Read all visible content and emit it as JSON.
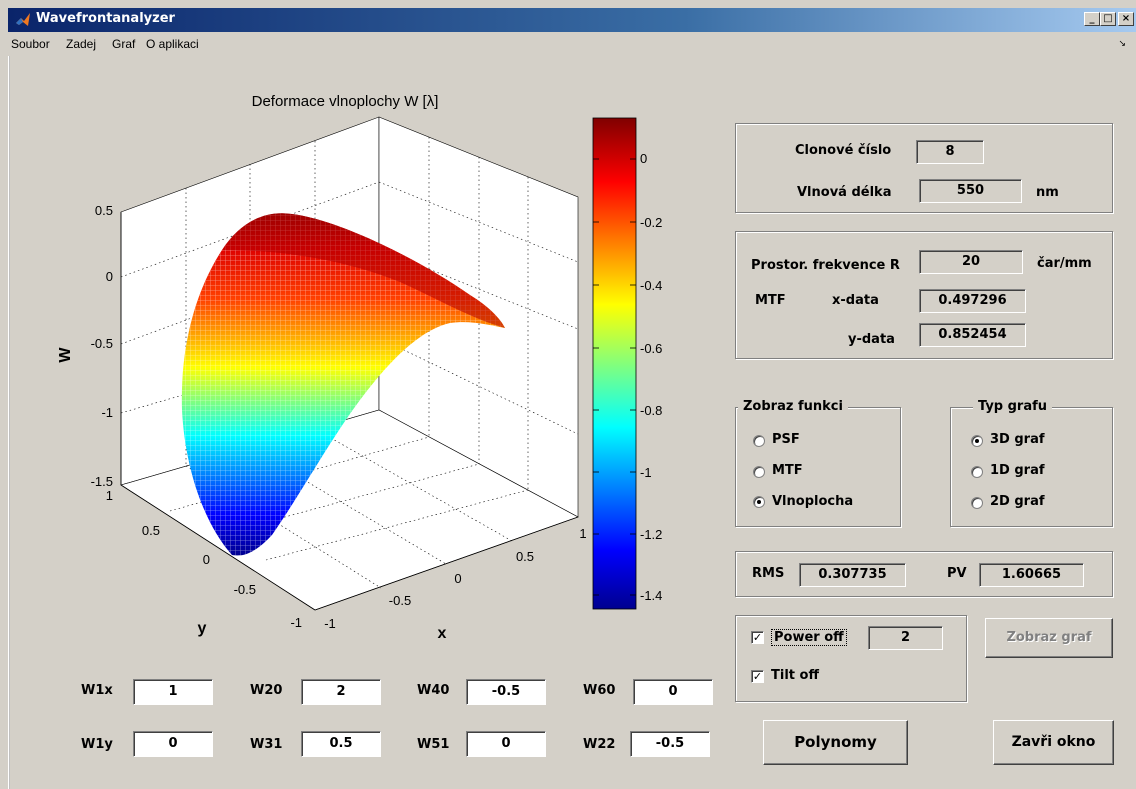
{
  "window": {
    "title": "Wavefrontanalyzer",
    "minimize": "_",
    "maximize": "□",
    "close": "×"
  },
  "menu": {
    "items": [
      "Soubor",
      "Zadej",
      "Graf",
      "O aplikaci"
    ],
    "dock_glyph": "↘"
  },
  "plot": {
    "title": "Deformace vlnoplochy W [λ]",
    "zlabel": "W",
    "xlabel": "x",
    "ylabel": "y",
    "z_ticks": [
      "0.5",
      "0",
      "-0.5",
      "-1",
      "-1.5"
    ],
    "x_ticks": [
      "-1",
      "-0.5",
      "0",
      "0.5",
      "1"
    ],
    "y_ticks": [
      "-1",
      "-0.5",
      "0",
      "0.5",
      "1"
    ],
    "colorbar_ticks": [
      "0",
      "-0.2",
      "-0.4",
      "-0.6",
      "-0.8",
      "-1",
      "-1.2",
      "-1.4"
    ],
    "colors": [
      "#00008f",
      "#0000ff",
      "#00ffff",
      "#ffff00",
      "#ff0000",
      "#800000"
    ]
  },
  "aperture_panel": {
    "f_number_label": "Clonové číslo",
    "f_number": "8",
    "wavelength_label": "Vlnová délka",
    "wavelength": "550",
    "wavelength_unit": "nm"
  },
  "mtf_panel": {
    "freq_label": "Prostor. frekvence R",
    "freq": "20",
    "freq_unit": "čar/mm",
    "mtf_label": "MTF",
    "x_label": "x-data",
    "x_value": "0.497296",
    "y_label": "y-data",
    "y_value": "0.852454"
  },
  "display_group": {
    "title": "Zobraz funkci",
    "options": [
      "PSF",
      "MTF",
      "Vlnoplocha"
    ],
    "selected": "Vlnoplocha"
  },
  "graph_type_group": {
    "title": "Typ grafu",
    "options": [
      "3D graf",
      "1D graf",
      "2D graf"
    ],
    "selected": "3D graf"
  },
  "stats": {
    "rms_label": "RMS",
    "rms": "0.307735",
    "pv_label": "PV",
    "pv": "1.60665"
  },
  "options_panel": {
    "power_off_label": "Power off",
    "power_off_checked": true,
    "power_value": "2",
    "tilt_off_label": "Tilt off",
    "tilt_off_checked": true,
    "check_glyph": "✓"
  },
  "coefficients": [
    {
      "label": "W1x",
      "value": "1"
    },
    {
      "label": "W20",
      "value": "2"
    },
    {
      "label": "W40",
      "value": "-0.5"
    },
    {
      "label": "W60",
      "value": "0"
    },
    {
      "label": "W1y",
      "value": "0"
    },
    {
      "label": "W31",
      "value": "0.5"
    },
    {
      "label": "W51",
      "value": "0"
    },
    {
      "label": "W22",
      "value": "-0.5"
    }
  ],
  "buttons": {
    "show_graph": "Zobraz graf",
    "polynomials": "Polynomy",
    "close_window": "Zavři okno"
  }
}
